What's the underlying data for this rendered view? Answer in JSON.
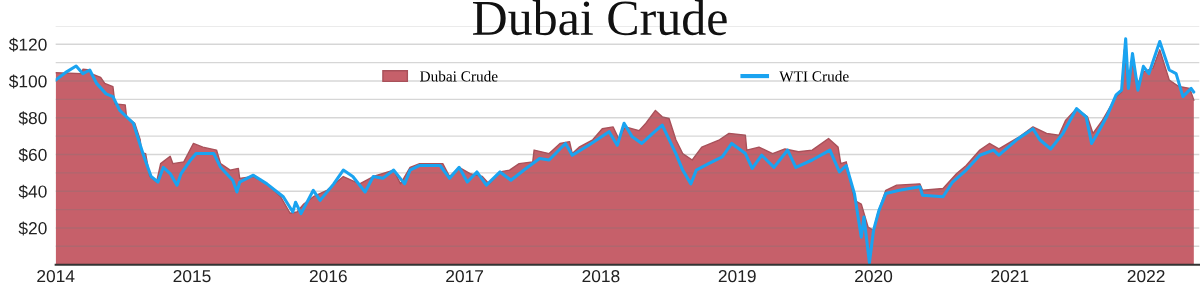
{
  "chart_data": {
    "type": "area",
    "title": "Dubai Crude",
    "xlim": [
      2014,
      2022.39
    ],
    "xticks": [
      2014,
      2015,
      2016,
      2017,
      2018,
      2019,
      2020,
      2021,
      2022
    ],
    "ylim": [
      0,
      130
    ],
    "yticks": [
      {
        "value": 10,
        "label": null
      },
      {
        "value": 20,
        "label": "$20"
      },
      {
        "value": 30,
        "label": null
      },
      {
        "value": 40,
        "label": "$40"
      },
      {
        "value": 50,
        "label": null
      },
      {
        "value": 60,
        "label": "$60"
      },
      {
        "value": 70,
        "label": null
      },
      {
        "value": 80,
        "label": "$80"
      },
      {
        "value": 90,
        "label": null
      },
      {
        "value": 100,
        "label": "$100"
      },
      {
        "value": 110,
        "label": null
      },
      {
        "value": 120,
        "label": "$120"
      },
      {
        "value": 130,
        "label": null
      }
    ],
    "grid": "y",
    "legend": "top",
    "series": [
      {
        "name": "Dubai Crude",
        "color": "#c6606a",
        "x": [
          2014.0,
          2014.19,
          2014.2,
          2014.25,
          2014.26,
          2014.33,
          2014.36,
          2014.42,
          2014.435,
          2014.51,
          2014.52,
          2014.58,
          2014.62,
          2014.63,
          2014.66,
          2014.69,
          2014.74,
          2014.77,
          2014.84,
          2014.86,
          2014.94,
          2015.01,
          2015.08,
          2015.18,
          2015.21,
          2015.28,
          2015.34,
          2015.35,
          2015.45,
          2015.55,
          2015.65,
          2015.72,
          2015.77,
          2015.82,
          2015.89,
          2015.99,
          2016.11,
          2016.23,
          2016.33,
          2016.48,
          2016.53,
          2016.6,
          2016.67,
          2016.84,
          2016.89,
          2016.96,
          2017.04,
          2017.13,
          2017.18,
          2017.26,
          2017.33,
          2017.4,
          2017.5,
          2017.51,
          2017.62,
          2017.7,
          2017.77,
          2017.79,
          2017.84,
          2017.94,
          2018.01,
          2018.09,
          2018.13,
          2018.18,
          2018.28,
          2018.33,
          2018.4,
          2018.45,
          2018.5,
          2018.55,
          2018.6,
          2018.67,
          2018.74,
          2018.87,
          2018.94,
          2019.06,
          2019.07,
          2019.16,
          2019.26,
          2019.35,
          2019.45,
          2019.55,
          2019.67,
          2019.74,
          2019.76,
          2019.8,
          2019.86,
          2019.91,
          2019.96,
          2020.0,
          2020.03,
          2020.09,
          2020.17,
          2020.34,
          2020.36,
          2020.51,
          2020.61,
          2020.68,
          2020.78,
          2020.85,
          2020.92,
          2021.07,
          2021.17,
          2021.27,
          2021.36,
          2021.41,
          2021.49,
          2021.57,
          2021.61,
          2021.68,
          2021.78,
          2021.82,
          2021.84,
          2021.87,
          2021.9,
          2021.94,
          2021.98,
          2022.05,
          2022.1,
          2022.17,
          2022.24,
          2022.32,
          2022.35
        ],
        "values": [
          104.5,
          104,
          106.4,
          106,
          104,
          102,
          98.7,
          97,
          87.5,
          87,
          80.5,
          77,
          68,
          61,
          60.5,
          48,
          45,
          55,
          59,
          55,
          56,
          66,
          64,
          62.4,
          55,
          51.5,
          52.4,
          47,
          48,
          44,
          37,
          28,
          28.7,
          33,
          37,
          40.5,
          48,
          44,
          48,
          51.5,
          44,
          53,
          55,
          55,
          48,
          53,
          49.6,
          48,
          44,
          50.5,
          51.5,
          55,
          56,
          62.4,
          60.5,
          66,
          67,
          60.5,
          64,
          68,
          74,
          75,
          68.7,
          75,
          73,
          77,
          84,
          80.5,
          79.6,
          68,
          60.5,
          57,
          64,
          68,
          71.5,
          70.5,
          62.4,
          64,
          60.5,
          63,
          61.5,
          62.4,
          68.7,
          64,
          55,
          56,
          35,
          33,
          20.5,
          18.7,
          27.8,
          40.5,
          43.3,
          44,
          40.5,
          41.5,
          49.6,
          54,
          62.4,
          66,
          63,
          69.6,
          75,
          71.5,
          70.5,
          78.7,
          85,
          80.5,
          71.5,
          78.7,
          91.5,
          94,
          117,
          97,
          109.6,
          98.7,
          105,
          107,
          117,
          100.5,
          97,
          96,
          89.6
        ]
      },
      {
        "name": "WTI Crude",
        "type": "line",
        "color": "#1aa3f0",
        "x": [
          2014.0,
          2014.08,
          2014.15,
          2014.2,
          2014.25,
          2014.3,
          2014.37,
          2014.42,
          2014.47,
          2014.57,
          2014.64,
          2014.7,
          2014.75,
          2014.79,
          2014.84,
          2014.89,
          2014.92,
          2014.99,
          2015.03,
          2015.16,
          2015.21,
          2015.3,
          2015.33,
          2015.35,
          2015.45,
          2015.55,
          2015.67,
          2015.74,
          2015.76,
          2015.8,
          2015.89,
          2015.94,
          2016.04,
          2016.11,
          2016.18,
          2016.27,
          2016.33,
          2016.4,
          2016.48,
          2016.56,
          2016.6,
          2016.67,
          2016.82,
          2016.89,
          2016.96,
          2017.02,
          2017.09,
          2017.16,
          2017.26,
          2017.34,
          2017.45,
          2017.55,
          2017.62,
          2017.74,
          2017.79,
          2017.91,
          2018.06,
          2018.12,
          2018.17,
          2018.23,
          2018.3,
          2018.38,
          2018.45,
          2018.55,
          2018.6,
          2018.66,
          2018.7,
          2018.79,
          2018.89,
          2018.96,
          2019.06,
          2019.11,
          2019.18,
          2019.27,
          2019.37,
          2019.43,
          2019.55,
          2019.68,
          2019.75,
          2019.8,
          2019.86,
          2019.91,
          2019.93,
          2019.97,
          2020.0,
          2020.04,
          2020.09,
          2020.19,
          2020.34,
          2020.36,
          2020.51,
          2020.58,
          2020.68,
          2020.78,
          2020.88,
          2020.92,
          2021.05,
          2021.17,
          2021.22,
          2021.3,
          2021.39,
          2021.49,
          2021.56,
          2021.6,
          2021.65,
          2021.71,
          2021.78,
          2021.82,
          2021.85,
          2021.87,
          2021.9,
          2021.94,
          2021.98,
          2022.02,
          2022.1,
          2022.17,
          2022.22,
          2022.27,
          2022.33,
          2022.35
        ],
        "values": [
          100.5,
          105,
          108.2,
          104,
          106,
          98.7,
          93,
          91.5,
          84,
          77,
          60.5,
          48,
          45,
          53,
          49.6,
          43.3,
          49.6,
          57,
          60.5,
          60.5,
          53,
          45.8,
          39.6,
          45,
          48.7,
          44,
          37,
          28.7,
          34,
          27.8,
          40.5,
          35,
          44,
          51.5,
          48,
          39.6,
          48,
          47,
          51.5,
          44,
          51.5,
          54,
          54,
          47,
          53,
          45,
          50.5,
          43.3,
          50.5,
          46,
          52.4,
          57.8,
          57,
          66,
          59.6,
          65,
          72.4,
          65,
          77,
          69.6,
          66,
          71.5,
          76,
          60.5,
          51.5,
          44,
          51.5,
          55,
          58.7,
          66,
          60.5,
          52.4,
          59.6,
          53,
          62.4,
          53,
          57,
          62.4,
          50.5,
          54,
          38.7,
          15,
          26,
          1,
          18.7,
          29.6,
          38.7,
          40.5,
          42.4,
          37.8,
          37,
          45,
          51.5,
          59.6,
          62.4,
          59.6,
          68,
          74,
          68,
          63,
          71.5,
          85,
          80.5,
          66,
          72.4,
          80.5,
          92.4,
          95,
          123,
          96,
          115,
          95,
          108,
          104,
          121.5,
          106,
          104,
          91.5,
          96,
          94
        ]
      }
    ]
  }
}
